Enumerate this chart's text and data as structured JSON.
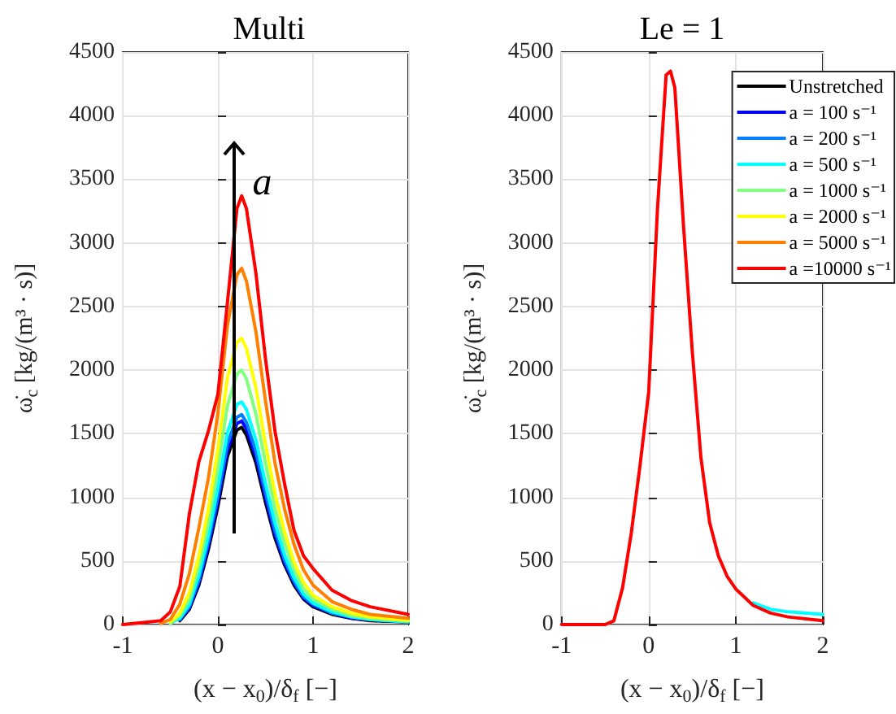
{
  "chart_data": [
    {
      "type": "line",
      "title": "Multi",
      "xlabel": "(x − x$_{0}$)/δ$_{f}$ [−]",
      "ylabel": "ω̇$_{c}$ [kg/(m³ · s)]",
      "x": [
        -1,
        -0.6,
        -0.5,
        -0.4,
        -0.3,
        -0.2,
        -0.1,
        0,
        0.1,
        0.2,
        0.25,
        0.3,
        0.4,
        0.5,
        0.6,
        0.7,
        0.8,
        0.9,
        1.0,
        1.2,
        1.4,
        1.6,
        2.0
      ],
      "series": [
        {
          "color": "#000000",
          "values": [
            null,
            null,
            null,
            30,
            120,
            310,
            590,
            930,
            1320,
            1530,
            1550,
            1490,
            1270,
            960,
            680,
            470,
            310,
            200,
            140,
            80,
            50,
            30,
            20
          ]
        },
        {
          "color": "#0000ff",
          "values": [
            null,
            null,
            null,
            40,
            130,
            330,
            620,
            970,
            1370,
            1580,
            1600,
            1540,
            1320,
            1000,
            710,
            490,
            330,
            210,
            150,
            90,
            50,
            40,
            20
          ]
        },
        {
          "color": "#0080ff",
          "values": [
            null,
            null,
            null,
            40,
            140,
            350,
            650,
            1010,
            1420,
            1630,
            1650,
            1590,
            1360,
            1040,
            740,
            510,
            340,
            220,
            160,
            90,
            60,
            40,
            20
          ]
        },
        {
          "color": "#00ffff",
          "values": [
            null,
            null,
            10,
            50,
            160,
            390,
            700,
            1080,
            1510,
            1730,
            1750,
            1690,
            1450,
            1110,
            800,
            550,
            370,
            240,
            170,
            100,
            60,
            40,
            20
          ]
        },
        {
          "color": "#80ff80",
          "values": [
            null,
            null,
            10,
            70,
            200,
            460,
            800,
            1230,
            1720,
            1970,
            2000,
            1930,
            1650,
            1270,
            910,
            640,
            430,
            280,
            200,
            120,
            70,
            50,
            30
          ]
        },
        {
          "color": "#ffff00",
          "values": [
            null,
            null,
            20,
            90,
            250,
            540,
            910,
            1380,
            1940,
            2220,
            2250,
            2170,
            1860,
            1420,
            1030,
            730,
            490,
            330,
            230,
            140,
            90,
            60,
            30
          ]
        },
        {
          "color": "#ff8000",
          "values": [
            null,
            10,
            40,
            160,
            400,
            760,
            1150,
            1660,
            2350,
            2750,
            2800,
            2700,
            2300,
            1760,
            1270,
            910,
            630,
            430,
            310,
            180,
            120,
            80,
            50
          ]
        },
        {
          "color": "#ff0000",
          "values": [
            0,
            30,
            100,
            300,
            870,
            1280,
            1520,
            1810,
            2530,
            3270,
            3370,
            3270,
            2760,
            2090,
            1520,
            1110,
            740,
            540,
            440,
            270,
            190,
            140,
            80
          ]
        }
      ],
      "annotations": [
        "a"
      ],
      "xlim": [
        -1,
        2
      ],
      "xticks": [
        -1,
        0,
        1,
        2
      ],
      "ylim": [
        0,
        4500
      ],
      "yticks": [
        0,
        500,
        1000,
        1500,
        2000,
        2500,
        3000,
        3500,
        4000,
        4500
      ],
      "grid": true,
      "legend": false,
      "marker": "none",
      "line_style": "solid"
    },
    {
      "type": "line",
      "title": "Le = 1",
      "xlabel": "(x − x$_{0}$)/δ$_{f}$ [−]",
      "ylabel": "ω̇$_{c}$ [kg/(m³ · s)]",
      "x": [
        -1,
        -0.6,
        -0.5,
        -0.4,
        -0.3,
        -0.2,
        -0.1,
        0,
        0.1,
        0.2,
        0.25,
        0.3,
        0.4,
        0.5,
        0.6,
        0.7,
        0.8,
        0.9,
        1.0,
        1.2,
        1.4,
        1.6,
        2.0
      ],
      "series": [
        {
          "name": "Unstretched",
          "color": "#000000",
          "values": [
            null,
            null,
            null,
            null,
            null,
            null,
            null,
            null,
            null,
            null,
            null,
            null,
            null,
            null,
            null,
            null,
            null,
            null,
            null,
            null,
            null,
            null,
            null
          ]
        },
        {
          "name": "a = 100 s⁻¹",
          "color": "#0000ff",
          "values": [
            null,
            null,
            null,
            null,
            null,
            null,
            null,
            null,
            null,
            null,
            null,
            null,
            null,
            null,
            null,
            null,
            null,
            null,
            null,
            null,
            null,
            null,
            null
          ]
        },
        {
          "name": "a = 200 s⁻¹",
          "color": "#0080ff",
          "values": [
            null,
            null,
            null,
            null,
            null,
            null,
            null,
            null,
            null,
            null,
            null,
            null,
            null,
            null,
            null,
            null,
            null,
            null,
            null,
            null,
            null,
            null,
            null
          ]
        },
        {
          "name": "a = 500 s⁻¹",
          "color": "#00ffff",
          "values": [
            null,
            null,
            null,
            null,
            null,
            null,
            null,
            null,
            null,
            null,
            null,
            null,
            null,
            null,
            null,
            null,
            null,
            null,
            null,
            170,
            120,
            100,
            80
          ]
        },
        {
          "name": "a = 1000 s⁻¹",
          "color": "#80ff80",
          "values": [
            null,
            null,
            null,
            null,
            null,
            null,
            null,
            null,
            null,
            null,
            null,
            null,
            null,
            null,
            null,
            null,
            null,
            null,
            null,
            null,
            null,
            null,
            null
          ]
        },
        {
          "name": "a = 2000 s⁻¹",
          "color": "#ffff00",
          "values": [
            null,
            null,
            null,
            null,
            null,
            null,
            null,
            null,
            null,
            null,
            null,
            null,
            null,
            null,
            null,
            null,
            null,
            null,
            null,
            null,
            null,
            null,
            null
          ]
        },
        {
          "name": "a = 5000 s⁻¹",
          "color": "#ff8000",
          "values": [
            null,
            null,
            null,
            null,
            null,
            null,
            null,
            null,
            null,
            null,
            null,
            null,
            null,
            null,
            null,
            null,
            null,
            null,
            null,
            null,
            null,
            null,
            null
          ]
        },
        {
          "name": "a =10000 s⁻¹",
          "color": "#ff0000",
          "values": [
            0,
            0,
            0,
            30,
            290,
            720,
            1250,
            1830,
            3260,
            4320,
            4350,
            4220,
            3130,
            2150,
            1310,
            800,
            540,
            380,
            280,
            150,
            90,
            60,
            30
          ]
        }
      ],
      "xlim": [
        -1,
        2
      ],
      "xticks": [
        -1,
        0,
        1,
        2
      ],
      "ylim": [
        0,
        4500
      ],
      "yticks": [
        0,
        500,
        1000,
        1500,
        2000,
        2500,
        3000,
        3500,
        4000,
        4500
      ],
      "grid": true,
      "legend": "top right",
      "marker": "none",
      "line_style": "solid"
    }
  ]
}
